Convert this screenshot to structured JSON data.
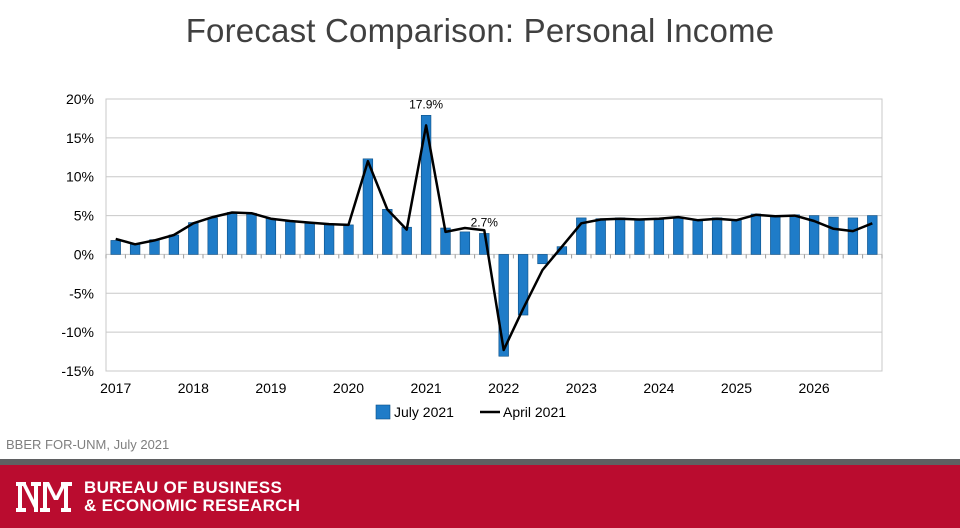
{
  "title": "Forecast Comparison: Personal Income",
  "source": "BBER FOR-UNM, July 2021",
  "footer": {
    "org_line1": "BUREAU OF BUSINESS",
    "org_line2": "& ECONOMIC RESEARCH"
  },
  "colors": {
    "bar": "#1f7cc8",
    "line": "#000000",
    "grid": "#c8c8c8",
    "footer_red": "#ba0c2f",
    "footer_gray": "#5f6062"
  },
  "chart_data": {
    "type": "bar",
    "title": "Forecast Comparison: Personal Income",
    "xlabel": "",
    "ylabel": "",
    "ylim": [
      -15,
      20
    ],
    "ytick_values": [
      -15,
      -10,
      -5,
      0,
      5,
      10,
      15,
      20
    ],
    "ytick_labels": [
      "-15%",
      "-10%",
      "-5%",
      "0%",
      "5%",
      "10%",
      "15%",
      "20%"
    ],
    "xtick_labels": [
      "2017",
      "2018",
      "2019",
      "2020",
      "2021",
      "2022",
      "2023",
      "2024",
      "2025",
      "2026"
    ],
    "x": [
      "2017Q1",
      "2017Q2",
      "2017Q3",
      "2017Q4",
      "2018Q1",
      "2018Q2",
      "2018Q3",
      "2018Q4",
      "2019Q1",
      "2019Q2",
      "2019Q3",
      "2019Q4",
      "2020Q1",
      "2020Q2",
      "2020Q3",
      "2020Q4",
      "2021Q1",
      "2021Q2",
      "2021Q3",
      "2021Q4",
      "2022Q1",
      "2022Q2",
      "2022Q3",
      "2022Q4",
      "2023Q1",
      "2023Q2",
      "2023Q3",
      "2023Q4",
      "2024Q1",
      "2024Q2",
      "2024Q3",
      "2024Q4",
      "2025Q1",
      "2025Q2",
      "2025Q3",
      "2025Q4",
      "2026Q1",
      "2026Q2",
      "2026Q3",
      "2026Q4"
    ],
    "grid": true,
    "legend_position": "bottom",
    "series": [
      {
        "name": "July 2021",
        "type": "bar",
        "values": [
          1.8,
          1.3,
          1.9,
          2.5,
          4.1,
          4.7,
          5.4,
          5.3,
          4.6,
          4.3,
          4.0,
          3.8,
          3.8,
          12.3,
          5.8,
          3.5,
          17.9,
          3.4,
          2.9,
          2.7,
          -13.1,
          -7.8,
          -1.2,
          1.0,
          4.7,
          4.6,
          4.7,
          4.5,
          4.5,
          4.7,
          4.4,
          4.7,
          4.4,
          5.2,
          5.0,
          5.1,
          5.0,
          4.8,
          4.7,
          5.0
        ]
      },
      {
        "name": "April 2021",
        "type": "line",
        "values": [
          2.0,
          1.3,
          1.8,
          2.5,
          4.0,
          4.8,
          5.4,
          5.3,
          4.6,
          4.3,
          4.1,
          3.9,
          3.8,
          12.0,
          5.8,
          3.2,
          16.6,
          2.9,
          3.4,
          3.1,
          -12.3,
          -7.0,
          -2.0,
          1.0,
          4.0,
          4.5,
          4.6,
          4.5,
          4.6,
          4.8,
          4.4,
          4.6,
          4.4,
          5.1,
          4.9,
          5.0,
          4.3,
          3.3,
          3.0,
          4.0
        ]
      }
    ],
    "data_labels": [
      {
        "series": "July 2021",
        "index": 16,
        "text": "17.9%"
      },
      {
        "series": "July 2021",
        "index": 19,
        "text": "2.7%"
      }
    ],
    "legend": [
      "July 2021",
      "April 2021"
    ]
  }
}
